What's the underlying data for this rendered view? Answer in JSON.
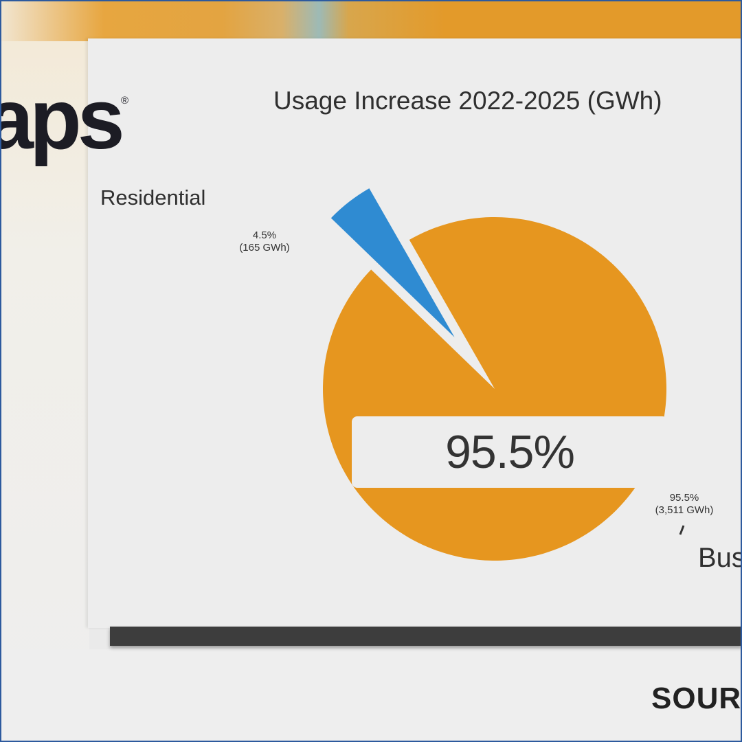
{
  "brand": {
    "logo_text": "aps",
    "logo_mark": "®"
  },
  "chart_data": {
    "type": "pie",
    "title": "Usage Increase 2022-2025 (GWh)",
    "center_label": "95.5%",
    "slices": [
      {
        "name": "Residential",
        "percent": 4.5,
        "value_label": "4.5%",
        "value_sub": "(165 GWh)",
        "color": "#2f8bd2",
        "exploded": true
      },
      {
        "name": "Bus",
        "percent": 95.5,
        "value_label": "95.5%",
        "value_sub": "(3,511 GWh)",
        "color": "#e6961f",
        "exploded": false
      }
    ]
  },
  "footer": {
    "source_text": "SOUR"
  },
  "colors": {
    "accent_orange": "#e39a2a",
    "panel": "#ededed",
    "bar": "#3d3d3d",
    "frame": "#2d5a9e"
  }
}
